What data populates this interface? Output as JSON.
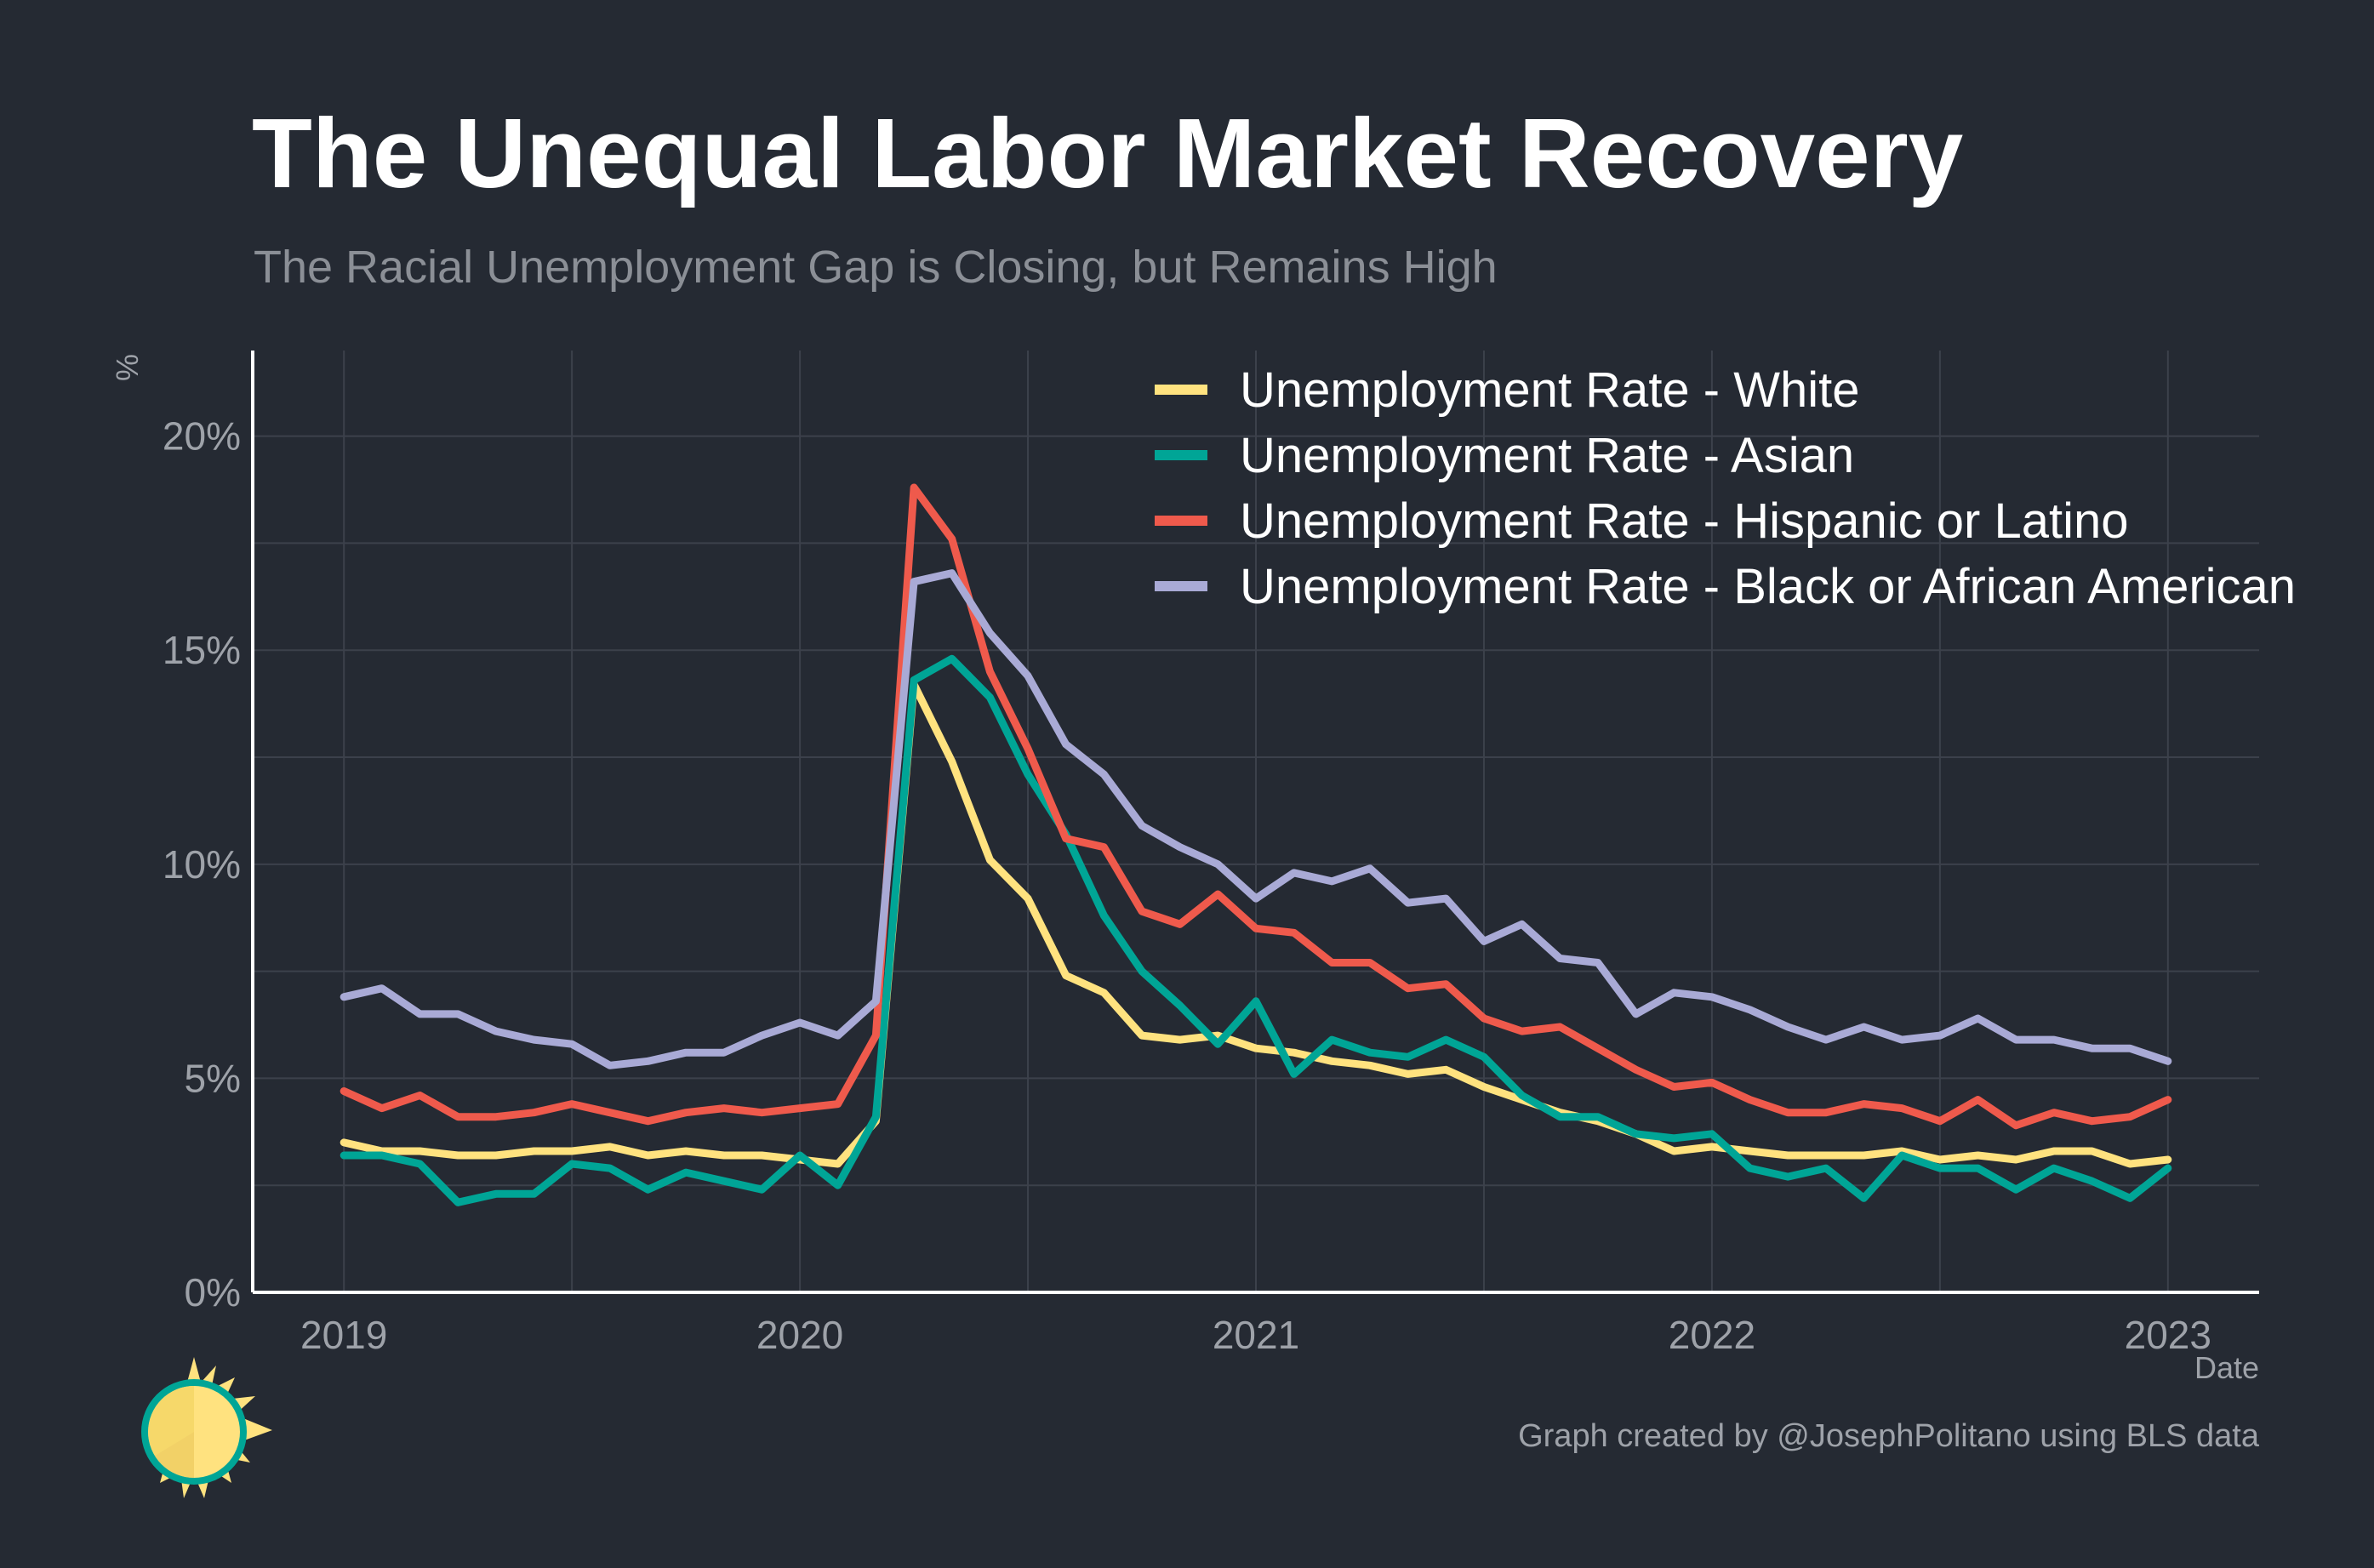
{
  "title": "The Unequal Labor Market Recovery",
  "subtitle": "The Racial Unemployment Gap is Closing, but Remains High",
  "caption": "Graph created by @JosephPolitano using BLS data",
  "logo_icon": "sun-logo-icon",
  "colors": {
    "background": "#252a33",
    "grid": "#3c414b",
    "axis": "#ffffff",
    "white": "#ffe27f",
    "asian": "#00a596",
    "hispanic": "#ef5a4c",
    "black": "#a9aad6"
  },
  "chart_data": {
    "type": "line",
    "xlabel": "Date",
    "ylabel": "%",
    "xlim": [
      2018.8,
      2023.2
    ],
    "ylim": [
      0,
      22
    ],
    "x_ticks": [
      2019,
      2020,
      2021,
      2022,
      2023
    ],
    "x_tick_labels": [
      "2019",
      "2020",
      "2021",
      "2022",
      "2023"
    ],
    "y_ticks": [
      0,
      5,
      10,
      15,
      20
    ],
    "y_tick_labels": [
      "0%",
      "5%",
      "10%",
      "15%",
      "20%"
    ],
    "grid": true,
    "legend_position": "top-right",
    "x_start": "2019-01",
    "x_end": "2023-01",
    "x_frequency": "monthly",
    "series": [
      {
        "name": "Unemployment Rate - White",
        "color": "#ffe27f",
        "values": [
          3.5,
          3.3,
          3.3,
          3.2,
          3.2,
          3.3,
          3.3,
          3.4,
          3.2,
          3.3,
          3.2,
          3.2,
          3.1,
          3.0,
          4.0,
          14.2,
          12.4,
          10.1,
          9.2,
          7.4,
          7.0,
          6.0,
          5.9,
          6.0,
          5.7,
          5.6,
          5.4,
          5.3,
          5.1,
          5.2,
          4.8,
          4.5,
          4.2,
          4.0,
          3.7,
          3.3,
          3.4,
          3.3,
          3.2,
          3.2,
          3.2,
          3.3,
          3.1,
          3.2,
          3.1,
          3.3,
          3.3,
          3.0,
          3.1
        ]
      },
      {
        "name": "Unemployment Rate - Asian",
        "color": "#00a596",
        "values": [
          3.2,
          3.2,
          3.0,
          2.1,
          2.3,
          2.3,
          3.0,
          2.9,
          2.4,
          2.8,
          2.6,
          2.4,
          3.2,
          2.5,
          4.1,
          14.3,
          14.8,
          13.9,
          12.1,
          10.7,
          8.8,
          7.5,
          6.7,
          5.8,
          6.8,
          5.1,
          5.9,
          5.6,
          5.5,
          5.9,
          5.5,
          4.6,
          4.1,
          4.1,
          3.7,
          3.6,
          3.7,
          2.9,
          2.7,
          2.9,
          2.2,
          3.2,
          2.9,
          2.9,
          2.4,
          2.9,
          2.6,
          2.2,
          2.9
        ]
      },
      {
        "name": "Unemployment Rate - Hispanic or Latino",
        "color": "#ef5a4c",
        "values": [
          4.7,
          4.3,
          4.6,
          4.1,
          4.1,
          4.2,
          4.4,
          4.2,
          4.0,
          4.2,
          4.3,
          4.2,
          4.3,
          4.4,
          6.0,
          18.8,
          17.6,
          14.5,
          12.7,
          10.6,
          10.4,
          8.9,
          8.6,
          9.3,
          8.5,
          8.4,
          7.7,
          7.7,
          7.1,
          7.2,
          6.4,
          6.1,
          6.2,
          5.7,
          5.2,
          4.8,
          4.9,
          4.5,
          4.2,
          4.2,
          4.4,
          4.3,
          4.0,
          4.5,
          3.9,
          4.2,
          4.0,
          4.1,
          4.5
        ]
      },
      {
        "name": "Unemployment Rate - Black or African American",
        "color": "#a9aad6",
        "values": [
          6.9,
          7.1,
          6.5,
          6.5,
          6.1,
          5.9,
          5.8,
          5.3,
          5.4,
          5.6,
          5.6,
          6.0,
          6.3,
          6.0,
          6.8,
          16.6,
          16.8,
          15.4,
          14.4,
          12.8,
          12.1,
          10.9,
          10.4,
          10.0,
          9.2,
          9.8,
          9.6,
          9.9,
          9.1,
          9.2,
          8.2,
          8.6,
          7.8,
          7.7,
          6.5,
          7.0,
          6.9,
          6.6,
          6.2,
          5.9,
          6.2,
          5.9,
          6.0,
          6.4,
          5.9,
          5.9,
          5.7,
          5.7,
          5.4
        ]
      }
    ]
  }
}
